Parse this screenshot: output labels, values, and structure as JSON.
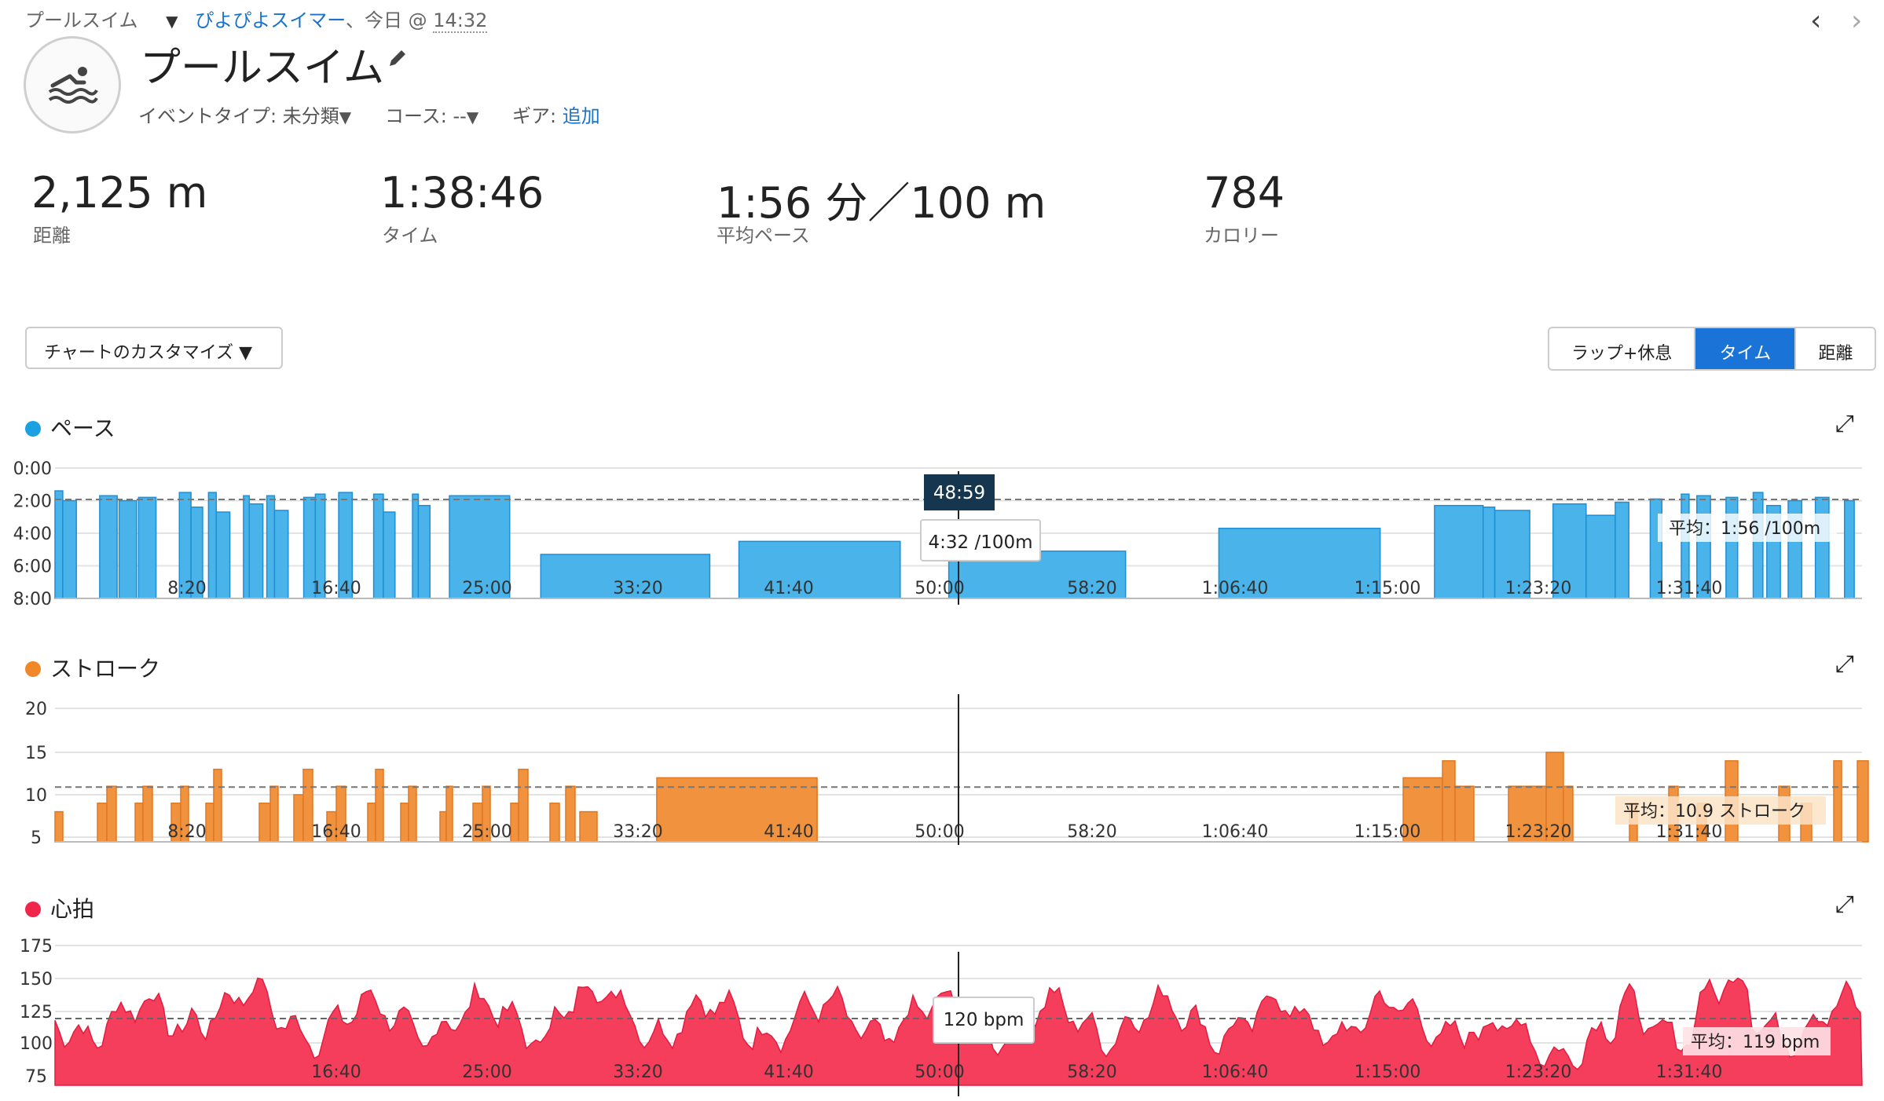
{
  "breadcrumb": {
    "activity_type": "プールスイム",
    "user": "ぴよぴよスイマー",
    "separator": "、今日",
    "at": "@",
    "time": "14:32"
  },
  "nav": {
    "prev_icon": "chevron-left-icon",
    "next_icon": "chevron-right-icon",
    "prev": "‹",
    "next": "›"
  },
  "activity": {
    "title": "プールスイム",
    "event_type_label": "イベントタイプ: 未分類",
    "course_label": "コース: --",
    "gear_label": "ギア:",
    "gear_link": "追加"
  },
  "stats": [
    {
      "value": "2,125 m",
      "label": "距離"
    },
    {
      "value": "1:38:46",
      "label": "タイム"
    },
    {
      "value": "1:56 分／100 m",
      "label": "平均ペース"
    },
    {
      "value": "784",
      "label": "カロリー"
    }
  ],
  "toolbar": {
    "customize": "チャートのカスタマイズ ▼",
    "segments": [
      "ラップ+休息",
      "タイム",
      "距離"
    ],
    "active_segment": "タイム"
  },
  "colors": {
    "pace": "#1ba1e2",
    "stroke": "#f0882a",
    "heart": "#f0264a",
    "accent": "#1a73d6"
  },
  "chart_data": [
    {
      "name": "ペース",
      "type": "bar",
      "x_unit": "seconds",
      "x_ticks": [
        "8:20",
        "16:40",
        "25:00",
        "33:20",
        "41:40",
        "50:00",
        "58:20",
        "1:06:40",
        "1:15:00",
        "1:23:20",
        "1:31:40"
      ],
      "y_ticks": [
        "0:00",
        "2:00",
        "4:00",
        "6:00",
        "8:00"
      ],
      "y_inverted": true,
      "ylim_min_per_100m": [
        0,
        8
      ],
      "xlim_seconds": [
        0,
        5926
      ],
      "avg_label": "平均：1:56 /100m",
      "avg_value": 1.93,
      "cursor_time": "48:59",
      "cursor_value_label": "4:32 /100m",
      "bars": [
        {
          "x0": 0,
          "x1": 40,
          "y": 1.4
        },
        {
          "x0": 40,
          "x1": 110,
          "y": 2.0
        },
        {
          "x0": 230,
          "x1": 320,
          "y": 1.7
        },
        {
          "x0": 330,
          "x1": 420,
          "y": 2.0
        },
        {
          "x0": 430,
          "x1": 520,
          "y": 1.8
        },
        {
          "x0": 640,
          "x1": 700,
          "y": 1.5
        },
        {
          "x0": 700,
          "x1": 760,
          "y": 2.4
        },
        {
          "x0": 790,
          "x1": 830,
          "y": 1.5
        },
        {
          "x0": 830,
          "x1": 900,
          "y": 2.7
        },
        {
          "x0": 970,
          "x1": 1000,
          "y": 1.7
        },
        {
          "x0": 1000,
          "x1": 1070,
          "y": 2.2
        },
        {
          "x0": 1090,
          "x1": 1130,
          "y": 1.7
        },
        {
          "x0": 1130,
          "x1": 1200,
          "y": 2.6
        },
        {
          "x0": 1280,
          "x1": 1340,
          "y": 1.8
        },
        {
          "x0": 1340,
          "x1": 1390,
          "y": 1.6
        },
        {
          "x0": 1460,
          "x1": 1530,
          "y": 1.5
        },
        {
          "x0": 1640,
          "x1": 1690,
          "y": 1.6
        },
        {
          "x0": 1690,
          "x1": 1750,
          "y": 2.7
        },
        {
          "x0": 1840,
          "x1": 1870,
          "y": 1.6
        },
        {
          "x0": 1870,
          "x1": 1930,
          "y": 2.3
        },
        {
          "x0": 2030,
          "x1": 2340,
          "y": 1.7
        },
        {
          "x0": 2500,
          "x1": 3370,
          "y": 5.3
        },
        {
          "x0": 3520,
          "x1": 4350,
          "y": 4.5
        },
        {
          "x0": 4600,
          "x1": 5510,
          "y": 5.1
        },
        {
          "x0": 5990,
          "x1": 6820,
          "y": 3.7
        },
        {
          "x0": 7100,
          "x1": 7350,
          "y": 2.3
        },
        {
          "x0": 7350,
          "x1": 7410,
          "y": 2.4
        },
        {
          "x0": 7410,
          "x1": 7590,
          "y": 2.6
        },
        {
          "x0": 7710,
          "x1": 7880,
          "y": 2.2
        },
        {
          "x0": 7880,
          "x1": 8030,
          "y": 2.9
        },
        {
          "x0": 8030,
          "x1": 8100,
          "y": 2.1
        },
        {
          "x0": 8210,
          "x1": 8270,
          "y": 1.9
        },
        {
          "x0": 8370,
          "x1": 8410,
          "y": 1.6
        },
        {
          "x0": 8450,
          "x1": 8520,
          "y": 1.7
        },
        {
          "x0": 8600,
          "x1": 8660,
          "y": 1.8
        },
        {
          "x0": 8740,
          "x1": 8790,
          "y": 1.5
        },
        {
          "x0": 8810,
          "x1": 8880,
          "y": 2.3
        },
        {
          "x0": 8920,
          "x1": 8990,
          "y": 2.0
        },
        {
          "x0": 9060,
          "x1": 9130,
          "y": 1.8
        },
        {
          "x0": 9210,
          "x1": 9260,
          "y": 2.0
        }
      ]
    },
    {
      "name": "ストローク",
      "type": "bar",
      "x_ticks": [
        "8:20",
        "16:40",
        "25:00",
        "33:20",
        "41:40",
        "50:00",
        "58:20",
        "1:06:40",
        "1:15:00",
        "1:23:20",
        "1:31:40"
      ],
      "y_ticks": [
        "20",
        "15",
        "10",
        "5"
      ],
      "ylim": [
        5,
        21
      ],
      "avg_label": "平均：10.9 ストローク",
      "avg_value": 10.9
    },
    {
      "name": "心拍",
      "type": "area",
      "x_ticks": [
        "16:40",
        "25:00",
        "33:20",
        "41:40",
        "50:00",
        "58:20",
        "1:06:40",
        "1:15:00",
        "1:23:20",
        "1:31:40"
      ],
      "y_ticks": [
        "175",
        "150",
        "125",
        "100",
        "75"
      ],
      "ylim": [
        75,
        180
      ],
      "avg_label": "平均：119 bpm",
      "avg_value": 119,
      "cursor_value_label": "120 bpm"
    }
  ],
  "sections": {
    "pace_title": "ペース",
    "stroke_title": "ストローク",
    "heart_title": "心拍",
    "expand_icon": "expand-icon"
  }
}
